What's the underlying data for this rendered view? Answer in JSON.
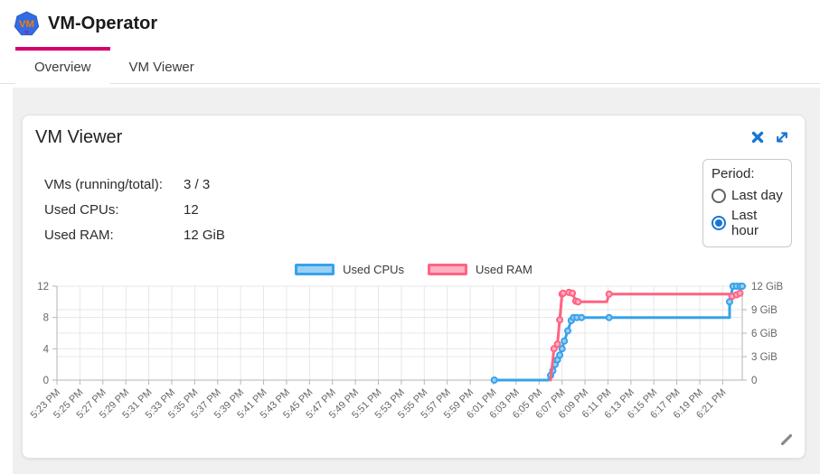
{
  "header": {
    "app_title": "VM-Operator",
    "logo_text": "VM"
  },
  "tabs": [
    {
      "label": "Overview",
      "active": true
    },
    {
      "label": "VM Viewer",
      "active": false
    }
  ],
  "card": {
    "title": "VM Viewer",
    "stats": [
      {
        "label": "VMs (running/total):",
        "value": "3 / 3"
      },
      {
        "label": "Used CPUs:",
        "value": "12"
      },
      {
        "label": "Used RAM:",
        "value": "12 GiB"
      }
    ],
    "period": {
      "label": "Period:",
      "options": [
        {
          "label": "Last day",
          "selected": false
        },
        {
          "label": "Last hour",
          "selected": true
        }
      ]
    }
  },
  "colors": {
    "tab_indicator": "#d4006e",
    "accent_blue": "#1976d2",
    "cpu_line": "#36A2EB",
    "cpu_fill": "#9BD0F5",
    "ram_line": "#FF6384",
    "ram_fill": "#FFB1C1",
    "grid": "#e7e7e7",
    "axis": "#b5b5b5",
    "tick_text": "#666666"
  },
  "icons": {
    "logo": "vm-logo-icon",
    "close": "close-icon",
    "expand": "expand-icon",
    "resize": "resize-handle-icon"
  },
  "chart_data": {
    "type": "line",
    "title": "",
    "legend_position": "top",
    "grid": true,
    "legend": [
      {
        "label": "Used CPUs",
        "color": "#36A2EB",
        "fill": "#9BD0F5",
        "axis": "left"
      },
      {
        "label": "Used RAM",
        "color": "#FF6384",
        "fill": "#FFB1C1",
        "axis": "right"
      }
    ],
    "x_labels": [
      "5:23 PM",
      "5:25 PM",
      "5:27 PM",
      "5:29 PM",
      "5:31 PM",
      "5:33 PM",
      "5:35 PM",
      "5:37 PM",
      "5:39 PM",
      "5:41 PM",
      "5:43 PM",
      "5:45 PM",
      "5:47 PM",
      "5:49 PM",
      "5:51 PM",
      "5:53 PM",
      "5:55 PM",
      "5:57 PM",
      "5:59 PM",
      "6:01 PM",
      "6:03 PM",
      "6:05 PM",
      "6:07 PM",
      "6:09 PM",
      "6:11 PM",
      "6:13 PM",
      "6:15 PM",
      "6:17 PM",
      "6:19 PM",
      "6:21 PM"
    ],
    "x_label_interval_minutes": 2,
    "x_range_minutes_after_first_label": [
      0,
      59.7
    ],
    "y_left": {
      "label": "",
      "ticks": [
        "0",
        "4",
        "8",
        "12"
      ],
      "tick_values": [
        0,
        4,
        8,
        12
      ],
      "range": [
        0,
        12
      ]
    },
    "y_right": {
      "label": "",
      "ticks": [
        "0",
        "3 GiB",
        "6 GiB",
        "9 GiB",
        "12 GiB"
      ],
      "tick_values": [
        0,
        3,
        6,
        9,
        12
      ],
      "range": [
        0,
        12
      ]
    },
    "series": [
      {
        "name": "Used CPUs",
        "axis": "left",
        "color": "#36A2EB",
        "fill": "#9BD0F5",
        "points_t_v_dot": [
          [
            38.1,
            0,
            1
          ],
          [
            42.8,
            0,
            0
          ],
          [
            43.0,
            0.6,
            1
          ],
          [
            43.2,
            1.2,
            1
          ],
          [
            43.4,
            2,
            1
          ],
          [
            43.6,
            2.6,
            1
          ],
          [
            43.8,
            3.2,
            1
          ],
          [
            44.0,
            4,
            1
          ],
          [
            44.2,
            5,
            1
          ],
          [
            44.5,
            6.3,
            1
          ],
          [
            44.8,
            7.6,
            1
          ],
          [
            45.0,
            8,
            1
          ],
          [
            45.3,
            8,
            1
          ],
          [
            45.7,
            8,
            1
          ],
          [
            48.1,
            8,
            1
          ],
          [
            58.6,
            8,
            0
          ],
          [
            58.6,
            10,
            1
          ],
          [
            58.9,
            12,
            1
          ],
          [
            59.2,
            12,
            1
          ],
          [
            59.5,
            12,
            1
          ],
          [
            59.7,
            12,
            1
          ]
        ],
        "summary_readings": [
          [
            "6:01 PM",
            0
          ],
          [
            "6:06 PM",
            0
          ],
          [
            "6:07 PM",
            4
          ],
          [
            "6:08 PM",
            8
          ],
          [
            "6:11 PM",
            8
          ],
          [
            "6:21 PM",
            8
          ],
          [
            "6:22 PM",
            10
          ],
          [
            "6:22 PM",
            12
          ]
        ]
      },
      {
        "name": "Used RAM",
        "axis": "right",
        "color": "#FF6384",
        "fill": "#FFB1C1",
        "points_t_v_dot": [
          [
            43.0,
            0,
            0
          ],
          [
            43.3,
            4,
            1
          ],
          [
            43.6,
            4.6,
            1
          ],
          [
            43.8,
            7.7,
            1
          ],
          [
            44.0,
            11,
            1
          ],
          [
            44.1,
            11.1,
            1
          ],
          [
            44.6,
            11.2,
            1
          ],
          [
            44.9,
            11.1,
            1
          ],
          [
            45.2,
            10.1,
            1
          ],
          [
            45.4,
            10,
            1
          ],
          [
            47.9,
            10,
            0
          ],
          [
            48.1,
            11,
            1
          ],
          [
            58.6,
            11,
            0
          ],
          [
            58.8,
            10.7,
            1
          ],
          [
            59.2,
            10.9,
            1
          ],
          [
            59.5,
            11.1,
            1
          ]
        ],
        "summary_readings": [
          [
            "6:06 PM",
            0
          ],
          [
            "6:07 PM",
            4
          ],
          [
            "6:07 PM",
            11
          ],
          [
            "6:08 PM",
            10
          ],
          [
            "6:11 PM",
            11
          ],
          [
            "6:21 PM",
            11
          ],
          [
            "6:22 PM",
            11
          ]
        ]
      }
    ],
    "t_unit": "minutes after 5:23 PM"
  }
}
